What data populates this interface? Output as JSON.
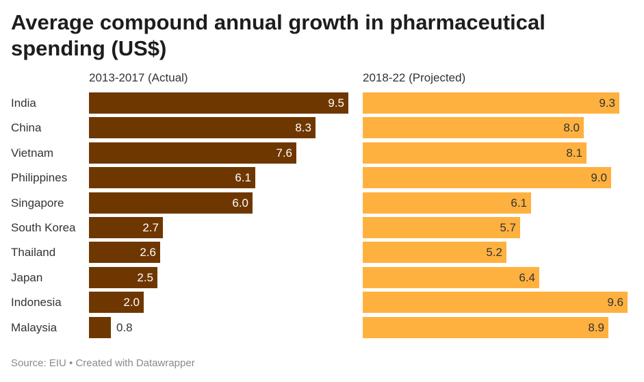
{
  "title": "Average compound annual growth in pharmaceutical spending (US$)",
  "source": "Source: EIU • Created with Datawrapper",
  "colors": {
    "actual": "#6f3700",
    "projected": "#ffb13f",
    "actual_label": "#ffffff",
    "projected_label": "#333333"
  },
  "chart_data": {
    "type": "bar",
    "title": "Average compound annual growth in pharmaceutical spending (US$)",
    "orientation": "horizontal",
    "layout": "split-columns",
    "categories": [
      "India",
      "China",
      "Vietnam",
      "Philippines",
      "Singapore",
      "South Korea",
      "Thailand",
      "Japan",
      "Indonesia",
      "Malaysia"
    ],
    "series": [
      {
        "name": "2013-2017 (Actual)",
        "values": [
          9.5,
          8.3,
          7.6,
          6.1,
          6.0,
          2.7,
          2.6,
          2.5,
          2.0,
          0.8
        ],
        "labels": [
          "9.5",
          "8.3",
          "7.6",
          "6.1",
          "6.0",
          "2.7",
          "2.6",
          "2.5",
          "2.0",
          "0.8"
        ]
      },
      {
        "name": "2018-22 (Projected)",
        "values": [
          9.3,
          8.0,
          8.1,
          9.0,
          6.1,
          5.7,
          5.2,
          6.4,
          9.6,
          8.9
        ],
        "labels": [
          "9.3",
          "8.0",
          "8.1",
          "9.0",
          "6.1",
          "5.7",
          "5.2",
          "6.4",
          "9.6",
          "8.9"
        ]
      }
    ],
    "xlim": [
      0,
      9.6
    ],
    "grid": false,
    "legend": "none"
  }
}
